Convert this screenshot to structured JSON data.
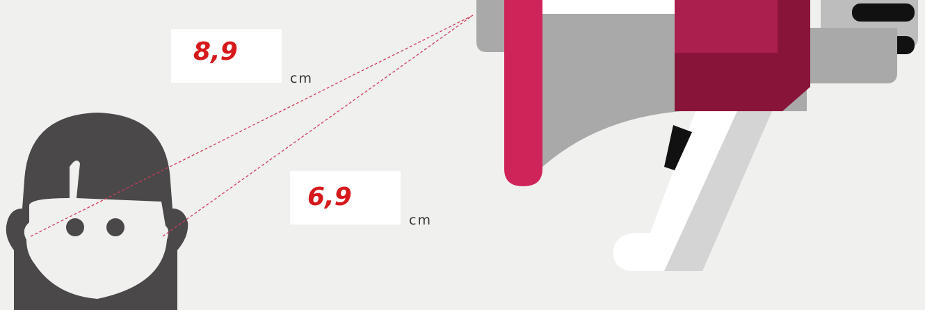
{
  "measurements": [
    {
      "value": "8,9",
      "unit": "cm"
    },
    {
      "value": "6,9",
      "unit": "cm"
    }
  ]
}
